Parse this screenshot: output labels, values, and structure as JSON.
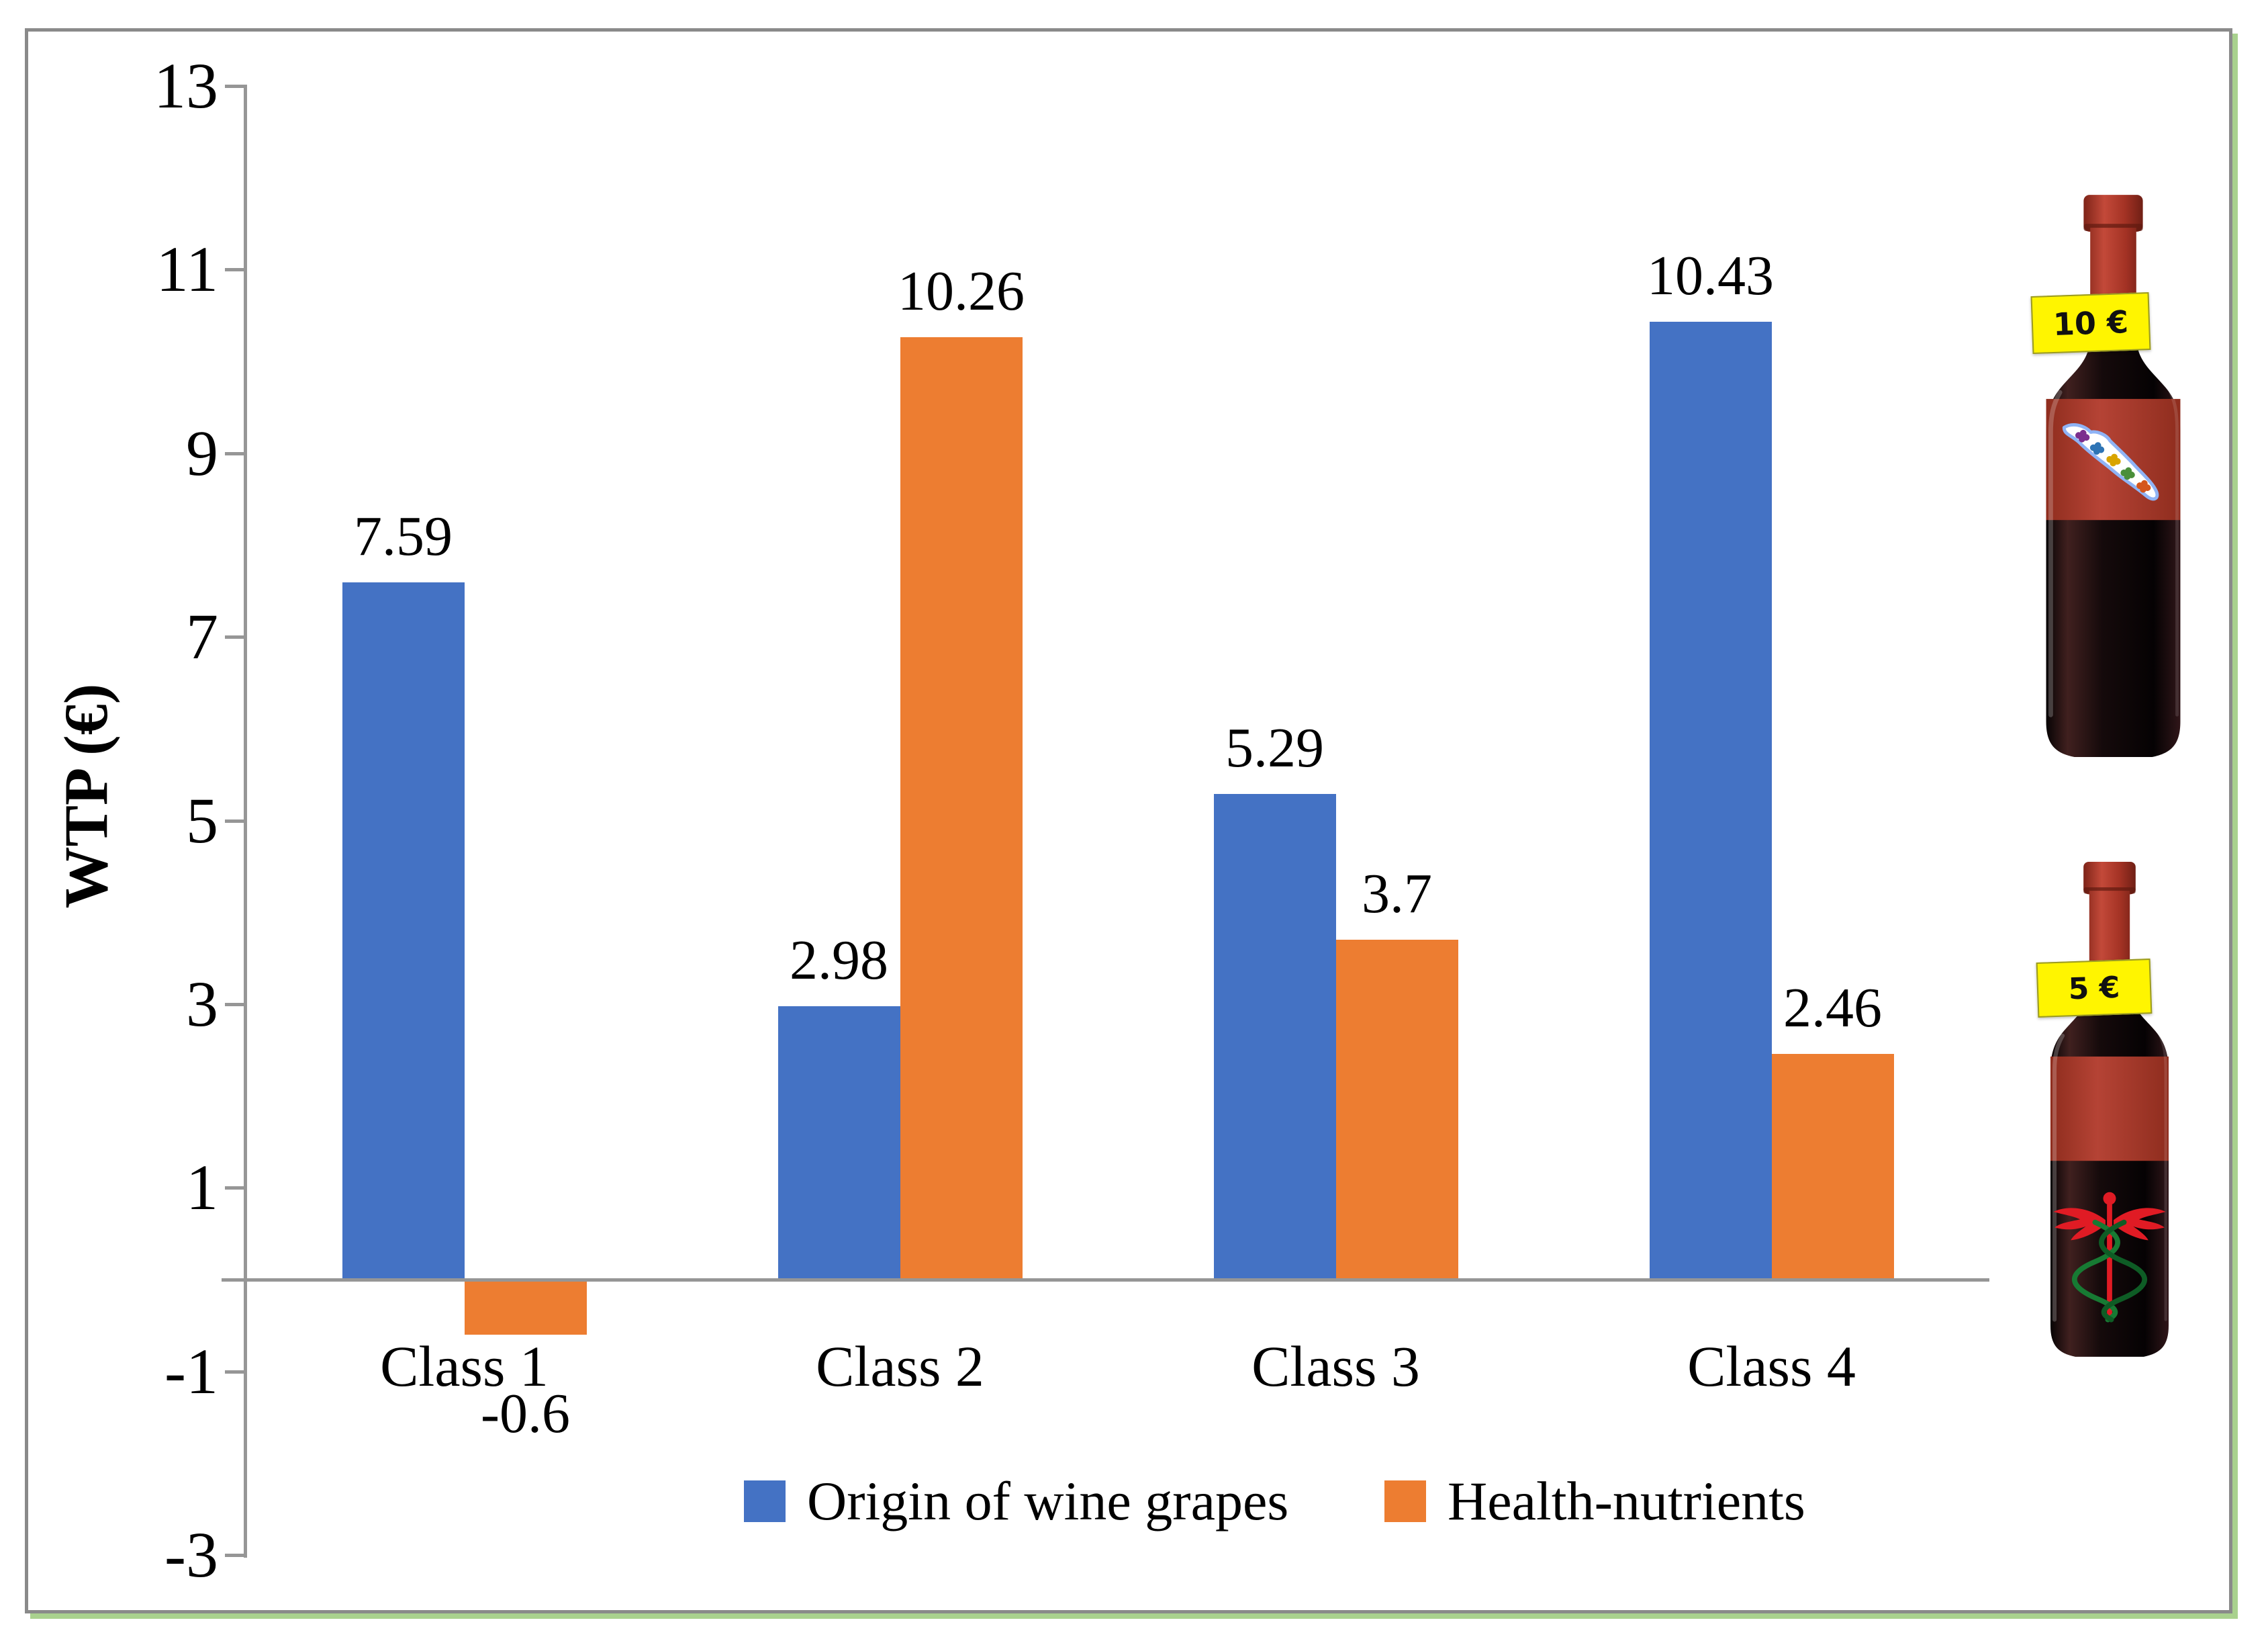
{
  "figure": {
    "y_axis_label": "WTP (€)",
    "x_axis_categories": [
      "Class 1",
      "Class 2",
      "Class 3",
      "Class 4"
    ],
    "legend": [
      {
        "label": "Origin of wine grapes",
        "color": "#4472C4"
      },
      {
        "label": "Health-nutrients",
        "color": "#ED7D31"
      }
    ]
  },
  "chart_data": {
    "type": "bar",
    "categories": [
      "Class 1",
      "Class 2",
      "Class 3",
      "Class 4"
    ],
    "series": [
      {
        "name": "Origin of wine grapes",
        "color": "#4472C4",
        "values": [
          7.59,
          2.98,
          5.29,
          10.43
        ]
      },
      {
        "name": "Health-nutrients",
        "color": "#ED7D31",
        "values": [
          -0.6,
          10.26,
          3.7,
          2.46
        ]
      }
    ],
    "data_labels": [
      [
        "7.59",
        "2.98",
        "5.29",
        "10.43"
      ],
      [
        "-0.6",
        "10.26",
        "3.7",
        "2.46"
      ]
    ],
    "title": "",
    "xlabel": "",
    "ylabel": "WTP (€)",
    "ylim": [
      -3,
      13
    ],
    "yticks": [
      13,
      11,
      9,
      7,
      5,
      3,
      1,
      -1,
      -3
    ],
    "grid": false,
    "legend_position": "bottom-center"
  },
  "bottles": [
    {
      "price_tag": "10 €",
      "label_art": "italy-map-grape-clusters"
    },
    {
      "price_tag": "5 €",
      "label_art": "caduceus-health-symbol"
    }
  ],
  "colors": {
    "bar_blue": "#4472C4",
    "bar_orange": "#ED7D31",
    "axis_gray": "#969696",
    "frame_gray": "#8a8a8a",
    "frame_shadow_green": "#a9d18e",
    "tag_yellow": "#fff500"
  }
}
